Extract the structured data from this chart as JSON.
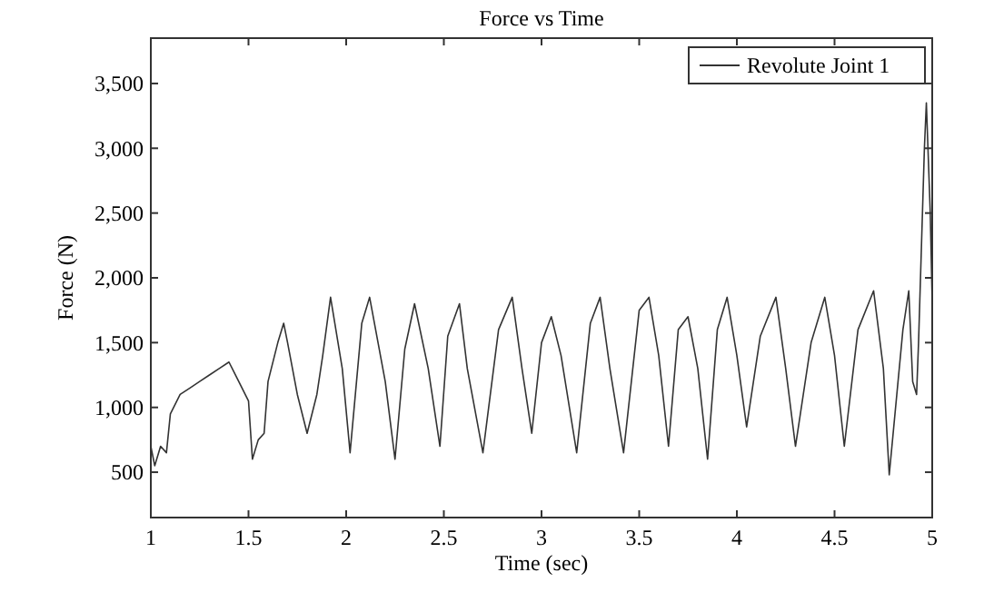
{
  "chart_data": {
    "type": "line",
    "title": "Force vs Time",
    "xlabel": "Time (sec)",
    "ylabel": "Force (N)",
    "xlim": [
      1,
      5
    ],
    "ylim": [
      150,
      3850
    ],
    "xticks": [
      1,
      1.5,
      2,
      2.5,
      3,
      3.5,
      4,
      4.5,
      5
    ],
    "yticks": [
      {
        "value": 500,
        "label": "500"
      },
      {
        "value": 1000,
        "label": "1,000"
      },
      {
        "value": 1500,
        "label": "1,500"
      },
      {
        "value": 2000,
        "label": "2,000"
      },
      {
        "value": 2500,
        "label": "2,500"
      },
      {
        "value": 3000,
        "label": "3,000"
      },
      {
        "value": 3500,
        "label": "3,500"
      }
    ],
    "legend": "top right",
    "grid": false,
    "marker": "none",
    "line_style": "solid",
    "series": [
      {
        "name": "Revolute Joint 1",
        "color": "#333333",
        "x": [
          1,
          1.02,
          1.05,
          1.08,
          1.1,
          1.15,
          1.2,
          1.25,
          1.3,
          1.35,
          1.4,
          1.45,
          1.5,
          1.52,
          1.55,
          1.58,
          1.6,
          1.65,
          1.68,
          1.7,
          1.75,
          1.8,
          1.85,
          1.88,
          1.92,
          1.98,
          2.02,
          2.08,
          2.12,
          2.2,
          2.25,
          2.3,
          2.35,
          2.42,
          2.48,
          2.52,
          2.58,
          2.62,
          2.7,
          2.78,
          2.85,
          2.9,
          2.95,
          3,
          3.05,
          3.1,
          3.18,
          3.25,
          3.3,
          3.35,
          3.42,
          3.5,
          3.55,
          3.6,
          3.65,
          3.7,
          3.75,
          3.8,
          3.85,
          3.9,
          3.95,
          4,
          4.05,
          4.12,
          4.2,
          4.25,
          4.3,
          4.38,
          4.45,
          4.5,
          4.55,
          4.62,
          4.7,
          4.75,
          4.78,
          4.85,
          4.88,
          4.9,
          4.92,
          4.93,
          4.96,
          4.97,
          4.99,
          5
        ],
        "values": [
          700,
          550,
          700,
          650,
          950,
          1100,
          1150,
          1200,
          1250,
          1300,
          1350,
          1200,
          1050,
          600,
          750,
          800,
          1200,
          1500,
          1650,
          1500,
          1100,
          800,
          1100,
          1400,
          1850,
          1300,
          650,
          1650,
          1850,
          1200,
          600,
          1450,
          1800,
          1300,
          700,
          1550,
          1800,
          1300,
          650,
          1600,
          1850,
          1300,
          800,
          1500,
          1700,
          1400,
          650,
          1650,
          1850,
          1300,
          650,
          1750,
          1850,
          1400,
          700,
          1600,
          1700,
          1300,
          600,
          1600,
          1850,
          1400,
          850,
          1550,
          1850,
          1300,
          700,
          1500,
          1850,
          1400,
          700,
          1600,
          1900,
          1300,
          480,
          1600,
          1900,
          1200,
          1100,
          1500,
          3000,
          3350,
          2500,
          1800
        ]
      }
    ]
  }
}
